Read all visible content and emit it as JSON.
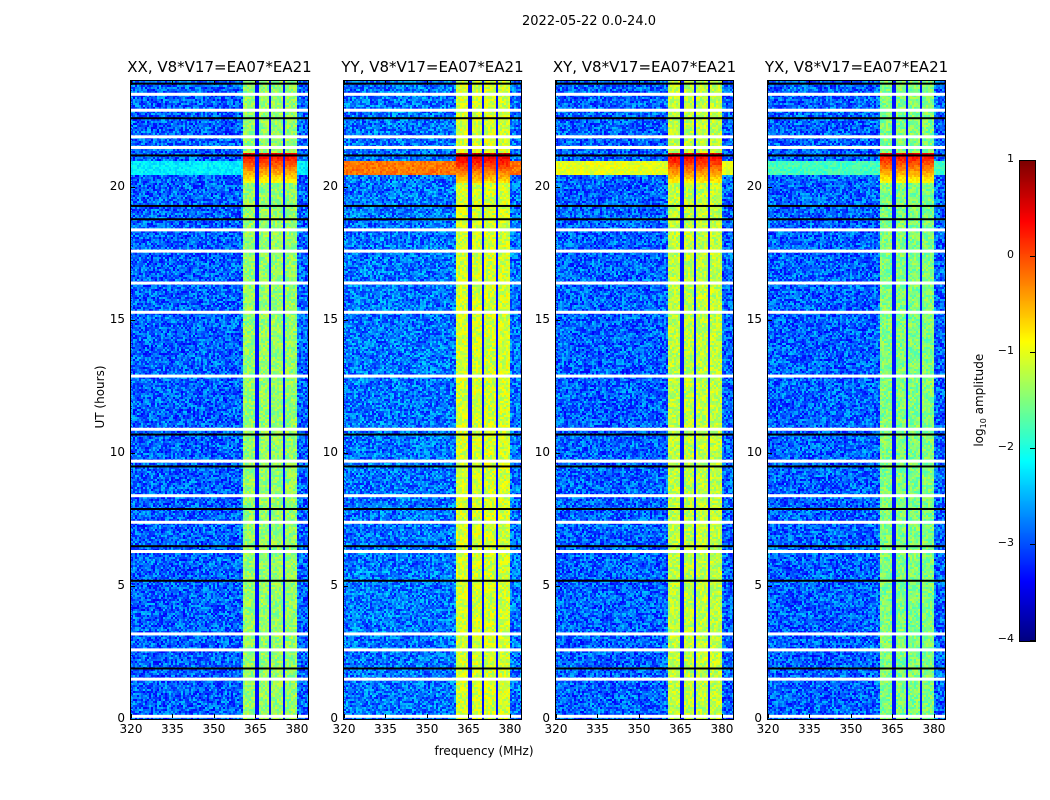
{
  "chart_data": {
    "type": "heatmap",
    "title": "2022-05-22 0.0-24.0",
    "xlabel": "frequency (MHz)",
    "ylabel": "UT (hours)",
    "xlim": [
      320,
      384
    ],
    "ylim": [
      0,
      24
    ],
    "xticks": [
      "320",
      "335",
      "350",
      "365",
      "380"
    ],
    "xtick_values": [
      320,
      335,
      350,
      365,
      380
    ],
    "yticks": [
      "0",
      "5",
      "10",
      "15",
      "20"
    ],
    "ytick_values": [
      0,
      5,
      10,
      15,
      20
    ],
    "colorbar": {
      "label_main": "log",
      "label_sub": "10",
      "label_tail": " amplitude",
      "range": [
        -4,
        1
      ],
      "ticks": [
        "1",
        "0",
        "−1",
        "−2",
        "−3",
        "−4"
      ],
      "tick_values": [
        1,
        0,
        -1,
        -2,
        -3,
        -4
      ],
      "colormap": "jet"
    },
    "panels": [
      {
        "title": "XX, V8*V17=EA07*EA21",
        "background_level": -2.9,
        "band_level": -1.4,
        "band_mhz": [
          360,
          380
        ],
        "burst_hours": [
          20.2,
          21.3
        ],
        "burst_level": 0.4,
        "broadband_burst_level": -2.2
      },
      {
        "title": "YY, V8*V17=EA07*EA21",
        "background_level": -2.8,
        "band_level": -1.1,
        "band_mhz": [
          360,
          380
        ],
        "burst_hours": [
          20.2,
          21.3
        ],
        "burst_level": 0.6,
        "broadband_burst_level": -0.2
      },
      {
        "title": "XY, V8*V17=EA07*EA21",
        "background_level": -2.9,
        "band_level": -1.2,
        "band_mhz": [
          360,
          380
        ],
        "burst_hours": [
          20.2,
          21.3
        ],
        "burst_level": 0.5,
        "broadband_burst_level": -1.0
      },
      {
        "title": "YX, V8*V17=EA07*EA21",
        "background_level": -2.9,
        "band_level": -1.5,
        "band_mhz": [
          360,
          380
        ],
        "burst_hours": [
          20.2,
          21.3
        ],
        "burst_level": 0.4,
        "broadband_burst_level": -1.8
      }
    ],
    "flagged_hours_white": [
      0.1,
      1.5,
      2.6,
      3.2,
      6.3,
      7.4,
      8.4,
      9.7,
      10.9,
      12.9,
      15.3,
      16.4,
      17.6,
      18.4,
      21.5,
      21.9,
      22.9,
      23.5
    ],
    "gap_hours_black": [
      1.9,
      5.2,
      6.5,
      7.9,
      9.5,
      10.7,
      18.8,
      19.3,
      21.2,
      22.6,
      23.9
    ],
    "band_channel_gaps_mhz": [
      365,
      370,
      375,
      380
    ]
  }
}
